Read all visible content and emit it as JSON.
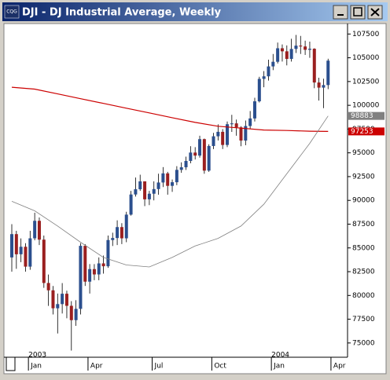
{
  "window": {
    "icon_text": "CQG",
    "title": "DJI - DJ Industrial Average, Weekly"
  },
  "chart_data": {
    "type": "candlestick",
    "categories": [
      null,
      null,
      null,
      null,
      null,
      "Jan",
      null,
      null,
      null,
      null,
      null,
      null,
      null,
      null,
      null,
      null,
      null,
      null,
      "Apr",
      null,
      null,
      null,
      null,
      null,
      null,
      null,
      null,
      null,
      null,
      null,
      null,
      null,
      "Jul",
      null,
      null,
      null,
      null,
      null,
      null,
      null,
      null,
      null,
      null,
      null,
      null,
      "Oct",
      null,
      null,
      null,
      null,
      null,
      null,
      null,
      null,
      null,
      null,
      null,
      null,
      "Jan",
      null,
      null,
      null,
      null,
      null,
      null,
      null,
      null,
      null,
      null,
      null,
      null,
      "Apr"
    ],
    "category_groups": [
      null,
      null,
      null,
      null,
      null,
      "2003",
      null,
      null,
      null,
      null,
      null,
      null,
      null,
      null,
      null,
      null,
      null,
      null,
      null,
      null,
      null,
      null,
      null,
      null,
      null,
      null,
      null,
      null,
      null,
      null,
      null,
      null,
      null,
      null,
      null,
      null,
      null,
      null,
      null,
      null,
      null,
      null,
      null,
      null,
      null,
      null,
      null,
      null,
      null,
      null,
      null,
      null,
      null,
      null,
      null,
      null,
      null,
      null,
      "2004",
      null,
      null,
      null,
      null,
      null,
      null,
      null,
      null,
      null,
      null,
      null,
      null,
      null
    ],
    "open": [
      84000,
      86450,
      84330,
      85120,
      83030,
      86010,
      87850,
      85870,
      81310,
      80540,
      78650,
      79090,
      80180,
      78910,
      77400,
      78590,
      85220,
      81450,
      82770,
      82210,
      83370,
      83070,
      85830,
      86040,
      87190,
      86010,
      88500,
      90620,
      91170,
      92000,
      90110,
      90700,
      91190,
      91880,
      92840,
      91530,
      91910,
      93210,
      93480,
      94150,
      95030,
      94710,
      96440,
      93130,
      95720,
      96740,
      97210,
      95830,
      98010,
      98100,
      97680,
      96290,
      97820,
      98620,
      100420,
      102780,
      103050,
      104090,
      104580,
      106000,
      105680,
      104880,
      105930,
      106280,
      106190,
      105840,
      105950,
      102400,
      101860,
      102130,
      null,
      null
    ],
    "high": [
      87500,
      86800,
      86000,
      85500,
      86800,
      88700,
      88200,
      86300,
      82200,
      81000,
      80200,
      81300,
      80500,
      79400,
      79500,
      85500,
      85400,
      83300,
      83300,
      84000,
      84200,
      86300,
      86600,
      87900,
      87600,
      88800,
      91000,
      92400,
      92700,
      92000,
      91000,
      92000,
      92800,
      93500,
      93000,
      92200,
      93600,
      94000,
      94600,
      95700,
      95600,
      96800,
      96500,
      95900,
      97100,
      98000,
      97500,
      98300,
      99000,
      98500,
      97800,
      98400,
      99400,
      100800,
      103000,
      103600,
      104800,
      105400,
      106600,
      106400,
      106300,
      107000,
      107400,
      107300,
      106800,
      106700,
      106000,
      102900,
      102800,
      104900,
      null,
      null
    ],
    "low": [
      82500,
      82800,
      83500,
      82500,
      82700,
      85800,
      85300,
      80800,
      78900,
      78000,
      76000,
      78100,
      77600,
      74200,
      76800,
      78000,
      81000,
      80200,
      81600,
      81600,
      82300,
      82900,
      85200,
      85300,
      85400,
      85600,
      88400,
      90400,
      91000,
      89400,
      89500,
      90000,
      90600,
      91400,
      90600,
      90900,
      91600,
      92900,
      93200,
      93900,
      94300,
      94500,
      92800,
      93000,
      95400,
      96300,
      95400,
      95600,
      97200,
      96800,
      95700,
      95800,
      97500,
      98300,
      100300,
      101900,
      102600,
      103700,
      104400,
      104600,
      104200,
      104600,
      105500,
      105400,
      105300,
      105000,
      101800,
      100500,
      99700,
      101700,
      null,
      null
    ],
    "close": [
      86450,
      84330,
      85120,
      83030,
      86010,
      87850,
      85870,
      81310,
      80540,
      78650,
      79090,
      80180,
      78910,
      77400,
      78590,
      85220,
      81450,
      82770,
      82210,
      83370,
      83070,
      85830,
      86040,
      87190,
      86010,
      88500,
      90620,
      91170,
      92000,
      90110,
      90700,
      91190,
      91880,
      92840,
      91530,
      91910,
      93210,
      93480,
      94150,
      95030,
      94710,
      96440,
      93130,
      95720,
      96740,
      97210,
      95830,
      98010,
      98100,
      97680,
      96290,
      97820,
      98620,
      100420,
      102780,
      103050,
      104090,
      104580,
      106000,
      105680,
      104880,
      105930,
      106280,
      106190,
      105840,
      105950,
      102400,
      101860,
      102130,
      104700,
      null,
      null
    ],
    "up_color": "#2b4f8e",
    "down_color": "#9a1f1f",
    "lines": [
      {
        "color": "#cc0000",
        "x": [
          0,
          5,
          10,
          15,
          20,
          25,
          30,
          35,
          40,
          45,
          50,
          55,
          60,
          65,
          69
        ],
        "values": [
          101900,
          101700,
          101200,
          100700,
          100200,
          99700,
          99200,
          98700,
          98200,
          97800,
          97600,
          97400,
          97350,
          97280,
          97253
        ]
      },
      {
        "color": "#808080",
        "x": [
          0,
          5,
          10,
          15,
          20,
          25,
          30,
          35,
          40,
          45,
          50,
          55,
          60,
          65,
          69
        ],
        "values": [
          89900,
          88900,
          87300,
          85600,
          84000,
          83200,
          83000,
          84000,
          85200,
          86000,
          87300,
          89600,
          92800,
          96000,
          98883
        ]
      }
    ],
    "xlim": [
      -1.2,
      72.9
    ],
    "ylim": [
      73500,
      108600
    ],
    "yticks": [
      75000,
      77500,
      80000,
      82500,
      85000,
      87500,
      90000,
      92500,
      95000,
      97500,
      100000,
      102500,
      105000,
      107500
    ]
  }
}
